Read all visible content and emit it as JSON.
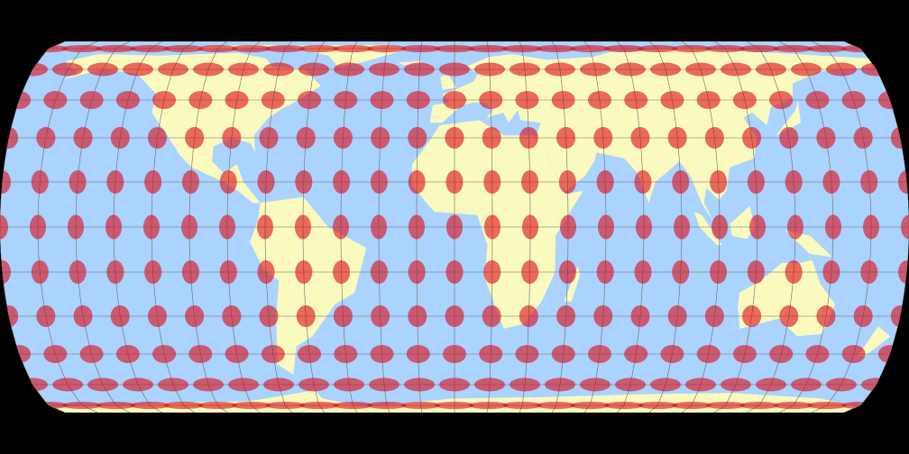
{
  "map": {
    "projection_style": "pseudocylindrical-flat-polar",
    "overlay": "tissot-indicatrix",
    "graticule_spacing_deg": 15,
    "tissot_spacing_deg": 15,
    "colors": {
      "background": "#000000",
      "ocean": "#aad3ff",
      "land": "#fafabe",
      "graticule": "#6a6a6a",
      "indicatrix": "#dc0a14",
      "indicatrix_opacity": 0.6
    }
  }
}
